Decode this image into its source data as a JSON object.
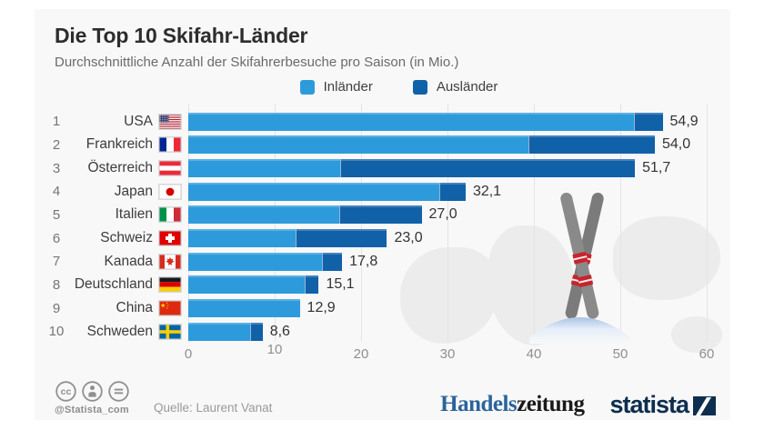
{
  "title": "Die Top 10 Skifahr-Länder",
  "subtitle": "Durchschnittliche Anzahl der Skifahrerbesuche pro Saison (in Mio.)",
  "legend": [
    {
      "label": "Inländer",
      "color": "#2D9BDB"
    },
    {
      "label": "Ausländer",
      "color": "#1161A9"
    }
  ],
  "chart_data": {
    "type": "bar",
    "orientation": "horizontal",
    "stacked": true,
    "title": "Die Top 10 Skifahr-Länder",
    "xlabel": "Skifahrerbesuche pro Saison (in Mio.)",
    "xlim": [
      0,
      60
    ],
    "grid": true,
    "x_ticks": [
      "0",
      "10",
      "20",
      "30",
      "40",
      "50",
      "60"
    ],
    "ranks": [
      "1",
      "2",
      "3",
      "4",
      "5",
      "6",
      "7",
      "8",
      "9",
      "10"
    ],
    "categories": [
      "USA",
      "Frankreich",
      "Österreich",
      "Japan",
      "Italien",
      "Schweiz",
      "Kanada",
      "Deutschland",
      "China",
      "Schweden"
    ],
    "flags": [
      "us",
      "fr",
      "at",
      "jp",
      "it",
      "ch",
      "ca",
      "de",
      "cn",
      "se"
    ],
    "series": [
      {
        "name": "Inländer",
        "color": "#2D9BDB",
        "values": [
          51.6,
          39.4,
          17.6,
          29.0,
          17.5,
          12.4,
          15.5,
          13.5,
          12.9,
          7.2
        ]
      },
      {
        "name": "Ausländer",
        "color": "#1161A9",
        "values": [
          3.3,
          14.6,
          34.1,
          3.1,
          9.5,
          10.6,
          2.3,
          1.6,
          0.0,
          1.4
        ]
      }
    ],
    "totals": [
      54.9,
      54.0,
      51.7,
      32.1,
      27.0,
      23.0,
      17.8,
      15.1,
      12.9,
      8.6
    ],
    "total_labels": [
      "54,9",
      "54,0",
      "51,7",
      "32,1",
      "27,0",
      "23,0",
      "17,8",
      "15,1",
      "12,9",
      "8,6"
    ]
  },
  "footer": {
    "handle": "@Statista_com",
    "source": "Quelle: Laurent Vanat",
    "partner_blue": "Handels",
    "partner_black": "zeitung",
    "brand": "statista",
    "license_icons": [
      "cc-icon",
      "attribution-icon",
      "equal-icon"
    ]
  },
  "colors": {
    "panel_bg": "#f8f8f8",
    "inlaender": "#2D9BDB",
    "auslaender": "#1161A9",
    "grid": "#e4e4e4",
    "brand_navy": "#0d2e4e"
  }
}
